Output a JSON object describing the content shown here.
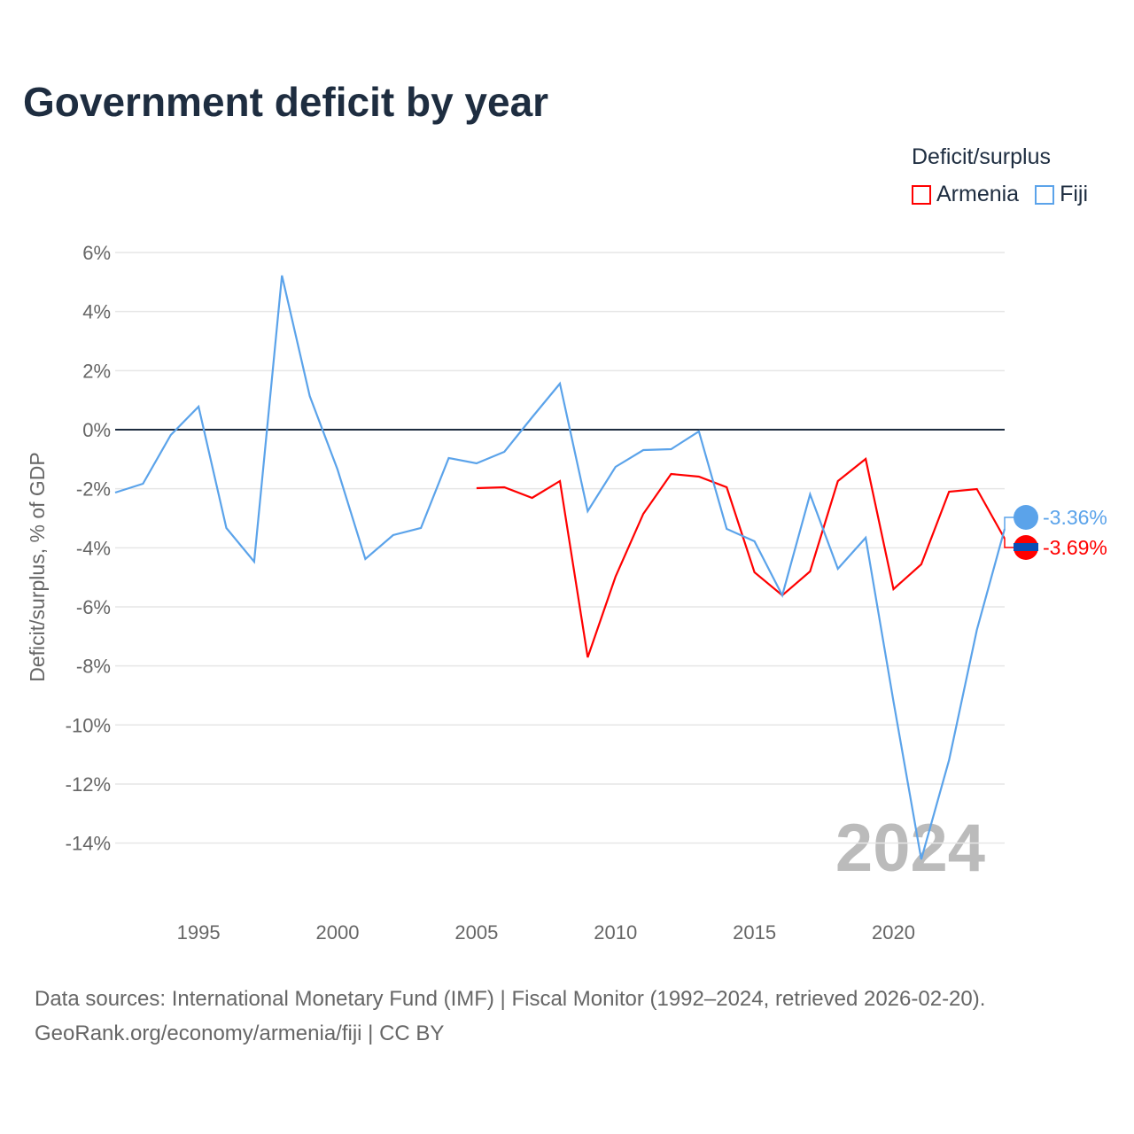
{
  "title": "Government deficit by year",
  "legend": {
    "title": "Deficit/surplus",
    "items": [
      {
        "name": "Armenia",
        "color": "#ff0000"
      },
      {
        "name": "Fiji",
        "color": "#5ba3ea"
      }
    ]
  },
  "source": {
    "line1": "Data sources: International Monetary Fund (IMF) | Fiscal Monitor (1992–2024, retrieved 2026-02-20).",
    "line2": "GeoRank.org/economy/armenia/fiji | CC BY"
  },
  "chart_data": {
    "type": "line",
    "title": "Government deficit by year",
    "ylabel": "Deficit/surplus, % of GDP",
    "xlabel": "",
    "xlim": [
      1992,
      2024
    ],
    "ylim": [
      -16,
      6.5
    ],
    "yticks": [
      6,
      4,
      2,
      0,
      -2,
      -4,
      -6,
      -8,
      -10,
      -12,
      -14
    ],
    "ytick_labels": [
      "6%",
      "4%",
      "2%",
      "0%",
      "-2%",
      "-4%",
      "-6%",
      "-8%",
      "-10%",
      "-12%",
      "-14%"
    ],
    "xticks": [
      1995,
      2000,
      2005,
      2010,
      2015,
      2020
    ],
    "xtick_labels": [
      "1995",
      "2000",
      "2005",
      "2010",
      "2015",
      "2020"
    ],
    "year_watermark": "2024",
    "series": [
      {
        "name": "Armenia",
        "color": "#ff0000",
        "end_label": "-3.69%",
        "x": [
          2005,
          2006,
          2007,
          2008,
          2009,
          2010,
          2011,
          2012,
          2013,
          2014,
          2015,
          2016,
          2017,
          2018,
          2019,
          2020,
          2021,
          2022,
          2023,
          2024
        ],
        "values": [
          -1.98,
          -1.95,
          -2.31,
          -1.74,
          -7.71,
          -4.98,
          -2.85,
          -1.5,
          -1.59,
          -1.95,
          -4.83,
          -5.61,
          -4.8,
          -1.74,
          -0.99,
          -5.4,
          -4.56,
          -2.1,
          -2.01,
          -3.69
        ]
      },
      {
        "name": "Fiji",
        "color": "#5ba3ea",
        "end_label": "-3.36%",
        "x": [
          1992,
          1993,
          1994,
          1995,
          1996,
          1997,
          1998,
          1999,
          2000,
          2001,
          2002,
          2003,
          2004,
          2005,
          2006,
          2007,
          2008,
          2009,
          2010,
          2011,
          2012,
          2013,
          2014,
          2015,
          2016,
          2017,
          2018,
          2019,
          2020,
          2021,
          2022,
          2023,
          2024
        ],
        "values": [
          -2.13,
          -1.83,
          -0.18,
          0.78,
          -3.33,
          -4.47,
          5.22,
          1.14,
          -1.35,
          -4.38,
          -3.57,
          -3.33,
          -0.96,
          -1.14,
          -0.75,
          0.42,
          1.56,
          -2.76,
          -1.26,
          -0.69,
          -0.66,
          -0.06,
          -3.36,
          -3.78,
          -5.61,
          -2.19,
          -4.71,
          -3.66,
          -9.2,
          -14.55,
          -11.19,
          -6.78,
          -3.36
        ]
      }
    ]
  }
}
